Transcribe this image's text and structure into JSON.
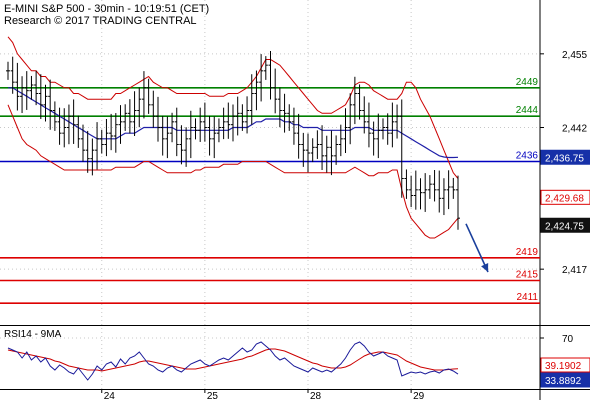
{
  "header": {
    "line1": "E-MINI S&P 500 - 30min - 10:19:51 (CET)",
    "line2": "Research © 2017 TRADING CENTRAL"
  },
  "colors": {
    "price": "#000000",
    "bollinger": "#cc0000",
    "ma": "#1f1fa8",
    "green_level": "#008000",
    "blue_level": "#0000c0",
    "red_level": "#dd0000",
    "arrow": "#1a3f9c",
    "rsi": "#1a1a9a",
    "rsi_ma": "#cc0000",
    "grid": "#c8c8c8"
  },
  "chart_data": [
    {
      "type": "line",
      "series_kind": "candlestick-bars",
      "title": "E-MINI S&P 500 - 30min",
      "y_ticks": [
        2455,
        2442,
        2417
      ],
      "ylim": [
        2407.5,
        2464.5
      ],
      "x_ticks": [
        "24",
        "25",
        "28",
        "29"
      ],
      "levels": [
        {
          "label": "2449",
          "value": 2449,
          "color": "green"
        },
        {
          "label": "2444",
          "value": 2444,
          "color": "green"
        },
        {
          "label": "2436",
          "value": 2436,
          "color": "blue"
        },
        {
          "label": "2419",
          "value": 2419,
          "color": "red"
        },
        {
          "label": "2415",
          "value": 2415,
          "color": "red"
        },
        {
          "label": "2411",
          "value": 2411,
          "color": "red"
        }
      ],
      "price_tags": [
        {
          "label": "2,436.75",
          "value": 2436.75,
          "style": "blue"
        },
        {
          "label": "2,429.68",
          "value": 2429.68,
          "style": "red"
        },
        {
          "label": "2,424.75",
          "value": 2424.75,
          "style": "black"
        }
      ],
      "closes": [
        2452,
        2450,
        2447.5,
        2449,
        2448.5,
        2449.5,
        2448,
        2446,
        2447.5,
        2445,
        2443,
        2441,
        2442,
        2444,
        2442.5,
        2440,
        2438,
        2436.5,
        2438,
        2440,
        2439,
        2441,
        2440.5,
        2442.5,
        2443,
        2444.5,
        2443,
        2445,
        2447,
        2449,
        2446,
        2444,
        2442,
        2440,
        2441,
        2443,
        2439,
        2438,
        2440,
        2442,
        2441.5,
        2443,
        2442,
        2440,
        2441,
        2442,
        2443,
        2442.5,
        2444,
        2444.5,
        2443,
        2445,
        2448,
        2450,
        2452,
        2453,
        2449,
        2447,
        2445,
        2444.5,
        2443,
        2441,
        2439,
        2438,
        2437.5,
        2438.5,
        2439,
        2437,
        2438.5,
        2437,
        2439,
        2440,
        2442,
        2446,
        2448,
        2445,
        2443,
        2441,
        2440,
        2441.5,
        2442,
        2441,
        2443,
        2444,
        2433,
        2431,
        2430,
        2431,
        2430.5,
        2431,
        2432,
        2431,
        2429.5,
        2431,
        2431.5,
        2431,
        2426
      ],
      "upper_band": [
        2458,
        2457,
        2455,
        2454,
        2453,
        2452,
        2452,
        2451,
        2451,
        2450,
        2450,
        2449.5,
        2449,
        2449,
        2448,
        2448,
        2447.5,
        2447,
        2447,
        2447,
        2447,
        2447,
        2447,
        2448,
        2448,
        2448.5,
        2449,
        2449.5,
        2450,
        2450.5,
        2451,
        2450,
        2449.5,
        2449,
        2449,
        2448.5,
        2448,
        2448,
        2448,
        2448,
        2448,
        2448,
        2448,
        2447.5,
        2447.5,
        2447.5,
        2447.5,
        2448,
        2448,
        2448,
        2448.5,
        2449,
        2450,
        2451,
        2452.5,
        2454,
        2454,
        2453.5,
        2453,
        2452,
        2451,
        2450,
        2449,
        2448,
        2447,
        2446,
        2445,
        2444.5,
        2444.5,
        2444.5,
        2445,
        2445.5,
        2446,
        2447.5,
        2449.5,
        2450,
        2450,
        2449.5,
        2448.5,
        2448,
        2447.5,
        2447,
        2447,
        2447,
        2448,
        2450,
        2450,
        2449,
        2447,
        2445.5,
        2444,
        2442,
        2440,
        2438,
        2436,
        2434,
        2433
      ],
      "lower_band": [
        2446,
        2444,
        2442,
        2440,
        2439,
        2438.5,
        2438,
        2437,
        2436.5,
        2436,
        2435.5,
        2435,
        2434.5,
        2434.5,
        2434.5,
        2434.5,
        2434.5,
        2434.5,
        2434.5,
        2434.5,
        2434.5,
        2434.5,
        2434.5,
        2435,
        2435,
        2435,
        2435,
        2435,
        2435.5,
        2436,
        2436,
        2435.5,
        2435,
        2434.5,
        2434,
        2434,
        2434,
        2434,
        2434,
        2434,
        2434.5,
        2434.5,
        2435,
        2435,
        2435,
        2435,
        2435.5,
        2435.5,
        2435.5,
        2435.5,
        2436,
        2436,
        2436,
        2436,
        2436,
        2436,
        2435.5,
        2435,
        2434.5,
        2434,
        2434,
        2434,
        2434,
        2434,
        2434,
        2434,
        2434,
        2434,
        2434,
        2434,
        2434,
        2434,
        2434,
        2434.5,
        2435,
        2434.5,
        2434,
        2433.5,
        2433.5,
        2434,
        2434,
        2434,
        2434.5,
        2434.5,
        2431,
        2428,
        2426,
        2425,
        2424,
        2423,
        2422.5,
        2422.5,
        2423,
        2423.5,
        2424,
        2425,
        2426
      ],
      "moving_average": [
        2449,
        2449,
        2448.5,
        2448,
        2447.5,
        2447,
        2446.5,
        2446,
        2445.5,
        2445,
        2444.5,
        2444,
        2443.5,
        2443,
        2442.5,
        2442,
        2441.5,
        2441,
        2440.5,
        2440,
        2440,
        2440,
        2440,
        2440,
        2440.5,
        2441,
        2441,
        2441,
        2441.5,
        2442,
        2442,
        2442,
        2442,
        2442,
        2442,
        2442,
        2441.5,
        2441.5,
        2441.5,
        2441.5,
        2441.5,
        2441.5,
        2441.5,
        2441.5,
        2441.5,
        2441.5,
        2441.5,
        2441.5,
        2442,
        2442,
        2442,
        2442,
        2442.5,
        2443,
        2443,
        2443.5,
        2443.5,
        2443.5,
        2443.5,
        2443,
        2443,
        2442.5,
        2442.5,
        2442,
        2442,
        2442,
        2442,
        2441.5,
        2441.5,
        2441.5,
        2441.5,
        2441.5,
        2441.5,
        2441.5,
        2442,
        2442,
        2442,
        2442,
        2441.5,
        2441.5,
        2441.5,
        2441.5,
        2441.5,
        2441.5,
        2441,
        2440.5,
        2440,
        2439.5,
        2439,
        2438.5,
        2438,
        2437.5,
        2437,
        2436.8,
        2436.7,
        2436.7,
        2436.75
      ],
      "projection_arrow": {
        "from_value": 2425,
        "to_value": 2416.5
      }
    },
    {
      "type": "line",
      "title": "RSI14 - 9MA",
      "y_ticks": [
        70
      ],
      "ylim": [
        20,
        80
      ],
      "value_tags": [
        {
          "label": "39.1902",
          "value": 39.1902,
          "style": "red"
        },
        {
          "label": "33.8892",
          "value": 33.8892,
          "style": "blue"
        }
      ],
      "rsi": [
        60,
        58,
        56,
        50,
        56,
        48,
        52,
        46,
        50,
        42,
        38,
        43,
        40,
        36,
        34,
        40,
        34,
        28,
        34,
        42,
        38,
        44,
        46,
        41,
        49,
        44,
        50,
        52,
        56,
        50,
        44,
        42,
        38,
        36,
        40,
        42,
        38,
        36,
        40,
        44,
        46,
        48,
        44,
        42,
        45,
        48,
        50,
        48,
        52,
        56,
        60,
        56,
        58,
        64,
        66,
        62,
        58,
        52,
        48,
        50,
        46,
        42,
        40,
        38,
        36,
        40,
        38,
        36,
        38,
        36,
        40,
        44,
        50,
        58,
        64,
        66,
        62,
        56,
        52,
        54,
        56,
        52,
        50,
        48,
        32,
        34,
        36,
        35,
        36,
        34,
        36,
        37,
        35,
        38,
        39,
        37,
        33.9
      ],
      "rsi_ma": [
        58,
        57,
        56,
        55,
        54,
        53,
        52,
        51,
        50,
        49,
        47,
        46,
        44,
        42,
        41,
        40,
        39,
        38,
        38,
        38,
        37,
        38,
        39,
        40,
        41,
        42,
        43,
        44,
        46,
        47,
        47,
        46,
        45,
        44,
        43,
        42,
        41,
        40,
        39,
        39,
        39,
        40,
        41,
        42,
        43,
        44,
        45,
        46,
        47,
        48,
        49,
        51,
        52,
        54,
        56,
        58,
        59,
        59,
        58,
        57,
        55,
        53,
        51,
        49,
        47,
        45,
        44,
        42,
        41,
        40,
        40,
        40,
        41,
        43,
        46,
        49,
        52,
        54,
        55,
        56,
        56,
        55,
        54,
        53,
        50,
        47,
        45,
        43,
        41,
        40,
        39,
        38,
        38,
        38,
        38.5,
        39,
        39.2
      ]
    }
  ]
}
